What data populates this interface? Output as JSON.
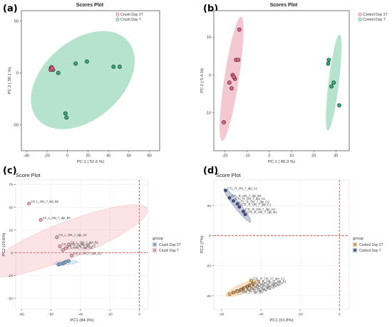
{
  "panels": [
    {
      "letter": "(a)"
    },
    {
      "letter": "(b)"
    },
    {
      "letter": "(c)"
    },
    {
      "letter": "(d)"
    }
  ],
  "chart_data": [
    {
      "type": "scatter",
      "title": "Scores Plot",
      "xlabel": "PC 1 ( 52.6 %)",
      "ylabel": "PC 2 ( 30.1 %)",
      "xlim": [
        -45,
        90
      ],
      "ylim": [
        -75,
        60
      ],
      "xticks": [
        -40,
        -20,
        0,
        20,
        40,
        60,
        80
      ],
      "yticks": [
        -50,
        0,
        50
      ],
      "grid": false,
      "legend": "top-right",
      "colors": {
        "Crush Day 27": "#e0607e",
        "Crush Day 7": "#2fae72"
      },
      "series": [
        {
          "name": "Crush Day 27",
          "ellipse": {
            "cx": -15,
            "cy": 4,
            "rx": 2.5,
            "ry": 2.2,
            "angle": 0
          },
          "points": [
            [
              -16,
              5
            ],
            [
              -15,
              4
            ],
            [
              -14,
              3
            ],
            [
              -16.5,
              3
            ],
            [
              -15.5,
              5.5
            ],
            [
              -15,
              4.5
            ]
          ]
        },
        {
          "name": "Crush Day 7",
          "ellipse": {
            "cx": 15,
            "cy": -7,
            "rx": 58,
            "ry": 38,
            "angle": 40
          },
          "points": [
            [
              -9,
              0
            ],
            [
              -2,
              -39
            ],
            [
              -1,
              -43
            ],
            [
              8,
              9
            ],
            [
              19,
              11
            ],
            [
              45,
              6
            ],
            [
              51,
              6
            ]
          ]
        }
      ]
    },
    {
      "type": "scatter",
      "title": "Scores Plot",
      "xlabel": "PC 1 ( 86.3 %)",
      "ylabel": "PC 2 ( 5.4 %)",
      "xlim": [
        -25,
        36
      ],
      "ylim": [
        -20,
        17
      ],
      "xticks": [
        -20,
        -10,
        0,
        10,
        20,
        30
      ],
      "yticks": [
        -10,
        0,
        10
      ],
      "grid": false,
      "legend": "top-right",
      "colors": {
        "Control Day 27": "#e0607e",
        "Control Day 7": "#2fae72"
      },
      "series": [
        {
          "name": "Control Day 27",
          "ellipse": {
            "cx": -17,
            "cy": -1,
            "rx": 17,
            "ry": 3.2,
            "angle": 75
          },
          "points": [
            [
              -20.5,
              -12.5
            ],
            [
              -18,
              -2
            ],
            [
              -17,
              -3.5
            ],
            [
              -16.5,
              0
            ],
            [
              -15.5,
              -1
            ],
            [
              -16,
              -0.5
            ],
            [
              -15,
              4
            ],
            [
              -14,
              4
            ],
            [
              -13.5,
              12
            ]
          ]
        },
        {
          "name": "Control Day 7",
          "ellipse": {
            "cx": 29,
            "cy": -2,
            "rx": 13,
            "ry": 2.3,
            "angle": 78
          },
          "points": [
            [
              26.5,
              3
            ],
            [
              26.8,
              4
            ],
            [
              28,
              -3
            ],
            [
              29,
              -2
            ],
            [
              31.5,
              -8
            ]
          ]
        }
      ]
    },
    {
      "type": "scatter",
      "title": "Score Plot",
      "xlabel": "PC1 (84.3%)",
      "ylabel": "PC2 (10.6%)",
      "xlim": [
        -84,
        6
      ],
      "ylim": [
        -62,
        80
      ],
      "xticks": [
        -80,
        -60,
        -40,
        -20,
        0
      ],
      "yticks": [
        -50,
        -25,
        0,
        25,
        50,
        75
      ],
      "grid": true,
      "legend": "right",
      "legend_title": "group",
      "colors": {
        "Crush Day 27": "#7aaed8",
        "Crush Day 7": "#f3a3ab"
      },
      "series": [
        {
          "name": "Crush Day 27",
          "ellipse": {
            "cx": -50,
            "cy": -11,
            "rx": 8.5,
            "ry": 2.2,
            "angle": 8
          },
          "points": [
            [
              -55,
              -13
            ],
            [
              -54,
              -12.5
            ],
            [
              -52,
              -12
            ],
            [
              -51,
              -11
            ],
            [
              -50,
              -10
            ],
            [
              -48,
              -9
            ]
          ]
        },
        {
          "name": "Crush Day 7",
          "ellipse": {
            "cx": -50,
            "cy": 13,
            "rx": 66,
            "ry": 18,
            "angle": 34
          },
          "points": [
            [
              -75,
              54
            ],
            [
              -67,
              36
            ],
            [
              -56,
              17
            ],
            [
              -54,
              7
            ],
            [
              -52,
              3
            ],
            [
              -50,
              5
            ],
            [
              -48,
              9
            ],
            [
              -46,
              -3
            ]
          ],
          "labels": [
            "CX_L_ON_7_dpi_B2",
            "CX_L_ON_7_dpi_B3",
            "CX_L_ON_7_dpi_A3",
            "CX_L_ON_7_dpi_C3",
            "CX_L_ON_7_dpi_C2",
            "CX_L_ON_7_dpi_A2",
            "CX_L_ON_7_dpi_B1",
            "CX_L_ON_7_dpi_A1"
          ]
        }
      ]
    },
    {
      "type": "scatter",
      "title": "Score Plot",
      "xlabel": "PC1 (91.8%)",
      "ylabel": "PC2 (7%)",
      "xlim": [
        -64,
        5
      ],
      "ylim": [
        -49,
        37
      ],
      "xticks": [
        -60,
        -40,
        -20,
        0
      ],
      "yticks": [
        -40,
        -20,
        0,
        20
      ],
      "grid": true,
      "legend": "right",
      "legend_title": "group",
      "colors": {
        "Control Day 27": "#f5a74a",
        "Control Day 7": "#3e4f8f"
      },
      "series": [
        {
          "name": "Control Day 27",
          "ellipse": {
            "cx": -49,
            "cy": -35,
            "rx": 10,
            "ry": 3,
            "angle": 30
          },
          "points": [
            [
              -45,
              -30
            ],
            [
              -44,
              -32
            ],
            [
              -46,
              -33
            ],
            [
              -47,
              -34
            ],
            [
              -49,
              -35
            ],
            [
              -50,
              -36
            ],
            [
              -52,
              -37
            ],
            [
              -54,
              -38
            ],
            [
              -56,
              -39
            ]
          ],
          "labels": [
            "CTL_R_ON_27_dpi_C1",
            "CTL_R_ON_27_dpi_B1",
            "CTL_R_ON_27_dpi_C2",
            "CTL_R_ON_27_dpi_B2",
            "CTL_R_ON_27_dpi_A2",
            "CTL_R_ON_27_dpi_A1",
            "CTL_R_ON_27_dpi_C3",
            "CTL_R_ON_27_dpi_A3",
            "CTL_R_ON_27_dpi_B3"
          ]
        },
        {
          "name": "Control Day 7",
          "ellipse": {
            "cx": -52,
            "cy": 20,
            "rx": 13,
            "ry": 1.8,
            "angle": -59
          },
          "points": [
            [
              -58,
              30
            ],
            [
              -56,
              25
            ],
            [
              -54,
              23
            ],
            [
              -52,
              21
            ],
            [
              -51,
              19
            ],
            [
              -49,
              16
            ],
            [
              -48,
              14
            ]
          ],
          "labels": [
            "CTL_R_ON_7_dpi_A2",
            "CTL_R_ON_7_dpi_B2",
            "CTL_R_ON_7_dpi_A1",
            "CTL_R_ON_7_dpi_C2",
            "CTL_R_ON_7_dpi_C1",
            "CTL_R_ON_7_dpi_A3",
            "CTL_R_ON_7_dpi_B1"
          ]
        }
      ]
    }
  ]
}
